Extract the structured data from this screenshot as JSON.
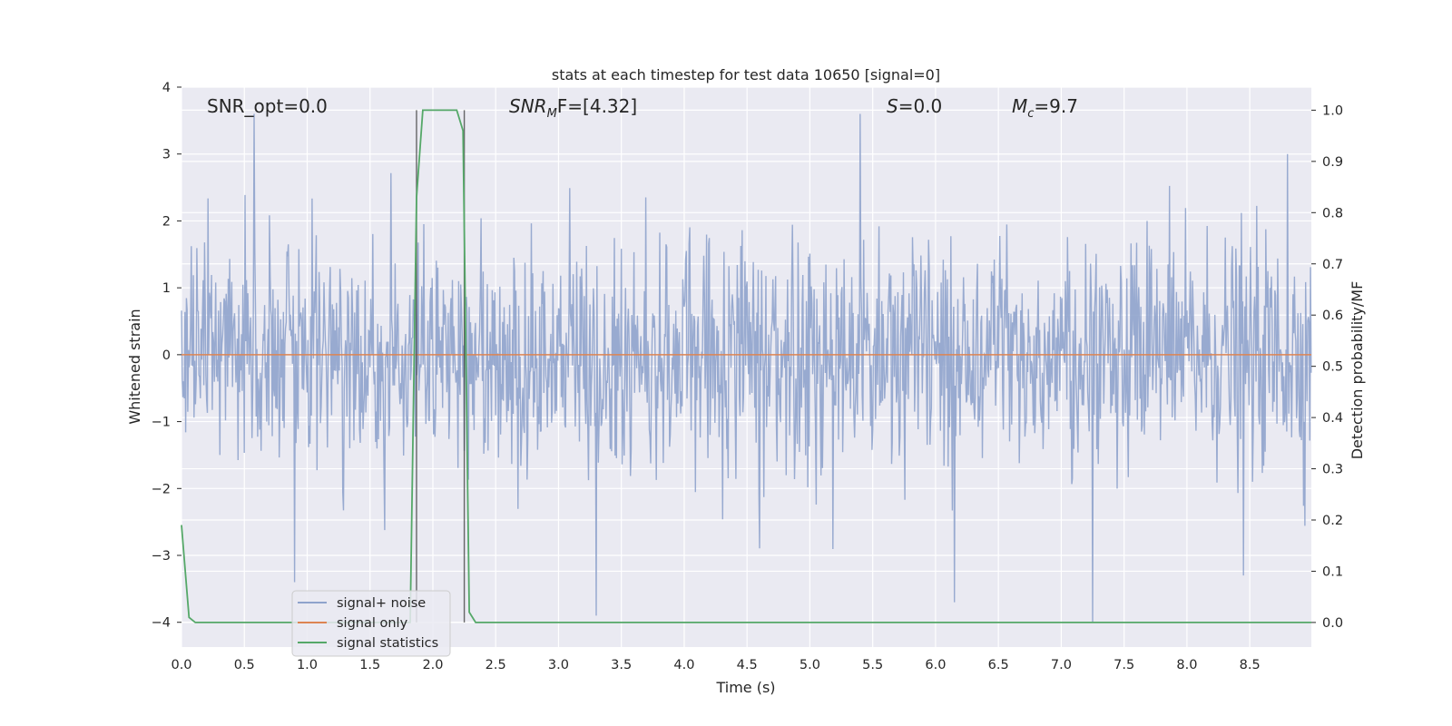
{
  "chart_data": {
    "type": "line",
    "title": "stats at each timestep for test data 10650 [signal=0]",
    "xlabel": "Time (s)",
    "ylabel": "Whitened strain",
    "y2label": "Detection probability/MF",
    "xlim": [
      0.0,
      8.99
    ],
    "ylim": [
      -4.37,
      4.0
    ],
    "y2lim": [
      -0.048,
      1.045
    ],
    "xticks": [
      "0.0",
      "0.5",
      "1.0",
      "1.5",
      "2.0",
      "2.5",
      "3.0",
      "3.5",
      "4.0",
      "4.5",
      "5.0",
      "5.5",
      "6.0",
      "6.5",
      "7.0",
      "7.5",
      "8.0",
      "8.5"
    ],
    "yticks": [
      "4",
      "3",
      "2",
      "1",
      "0",
      "−1",
      "−2",
      "−3",
      "−4"
    ],
    "y2ticks": [
      "1.0",
      "0.9",
      "0.8",
      "0.7",
      "0.6",
      "0.5",
      "0.4",
      "0.3",
      "0.2",
      "0.1",
      "0.0"
    ],
    "grid": true,
    "legend_position": "lower-left",
    "annotations": {
      "snr_opt": "SNR_opt=0.0",
      "snr_mf_prefix": "SNR",
      "snr_mf_sub": "M",
      "snr_mf_suffix": "F=[4.32]",
      "s_prefix": "S",
      "s_suffix": "=0.0",
      "mc_prefix": "M",
      "mc_sub": "c",
      "mc_suffix": "=9.7"
    },
    "vlines_x": [
      1.87,
      2.25
    ],
    "series": [
      {
        "name": "signal+ noise",
        "color": "#8fa3cc",
        "noise_sigma": 0.85,
        "sampling_rate_hz": 180,
        "peak_spikes": [
          [
            0.58,
            3.6
          ],
          [
            0.9,
            -3.4
          ],
          [
            3.3,
            -3.9
          ],
          [
            5.4,
            3.6
          ],
          [
            6.15,
            -3.7
          ],
          [
            7.25,
            -4.0
          ],
          [
            8.45,
            -3.3
          ],
          [
            8.8,
            3.0
          ]
        ]
      },
      {
        "name": "signal only",
        "color": "#dd8452",
        "x": [
          0.0,
          8.99
        ],
        "y": [
          0.0,
          0.0
        ]
      },
      {
        "name": "signal statistics",
        "color": "#55a868",
        "axis": "right",
        "x": [
          0.0,
          0.06,
          0.11,
          0.16,
          1.82,
          1.87,
          1.92,
          1.94,
          2.19,
          2.24,
          2.29,
          2.34,
          8.99
        ],
        "y": [
          0.19,
          0.01,
          0.0,
          0.0,
          0.0,
          0.83,
          1.0,
          1.0,
          1.0,
          0.96,
          0.02,
          0.0,
          0.0
        ]
      }
    ]
  }
}
